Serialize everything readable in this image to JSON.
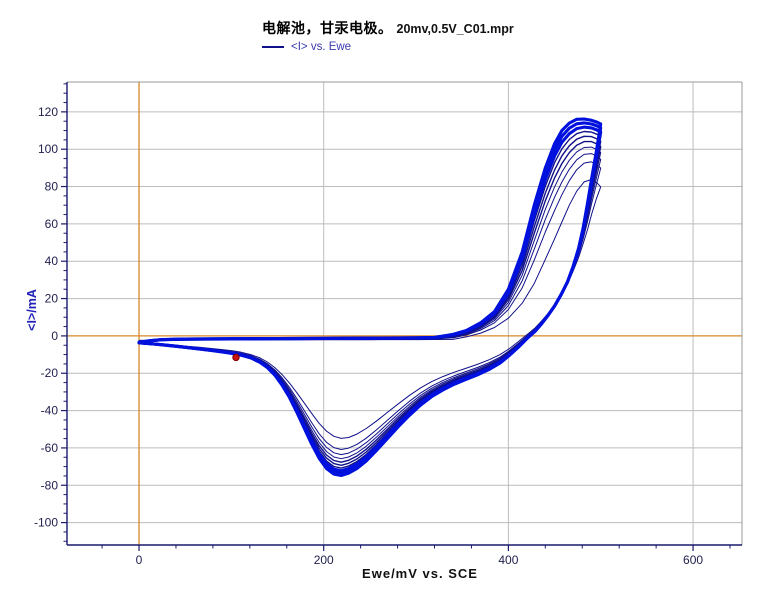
{
  "chart_data": {
    "type": "line",
    "title_cn": "电解池，甘汞电极。",
    "title_file": "20mv,0.5V_C01.mpr",
    "legend": "<I> vs. Ewe",
    "xlabel": "Ewe/mV vs. SCE",
    "ylabel": "<I>/mA",
    "xlim": [
      -78,
      653
    ],
    "ylim": [
      -112,
      136
    ],
    "x_ticks": [
      0,
      200,
      400,
      600
    ],
    "y_ticks": [
      -100,
      -80,
      -60,
      -40,
      -20,
      0,
      20,
      40,
      60,
      80,
      100,
      120
    ],
    "x_minor_step": 40,
    "y_minor_step": 5,
    "grid": true,
    "legend_position": "top-left-under-title",
    "colors": {
      "trace_bold": "#0010dd",
      "trace_thin": "#10108a",
      "zero_lines": "#d8872a",
      "grid": "#bcbcbc",
      "frame_gray": "#9a9a9a",
      "axis_navy": "#1a1a6e",
      "tick_label": "#22224f",
      "marker": "#cc1111"
    },
    "marker_point": {
      "x": 105,
      "y": -11.5
    },
    "n_cycles": 10,
    "series": {
      "name": "<I> vs. Ewe",
      "note": "cyclic voltammogram, 10 cycles between 0 and 500 mV; first (innermost) and last (outermost) cycles given, intermediate cycles interpolated",
      "forward_x": [
        0,
        12,
        25,
        50,
        100,
        150,
        200,
        250,
        300,
        320,
        340,
        355,
        370,
        385,
        400,
        415,
        428,
        440,
        450,
        458,
        466,
        474,
        482,
        490,
        496,
        500
      ],
      "outer_forward_y": [
        -3.6,
        -2.6,
        -2.0,
        -1.7,
        -1.5,
        -1.4,
        -1.3,
        -1.2,
        -1.0,
        -0.8,
        0.8,
        3,
        7,
        13,
        25,
        45,
        70,
        90,
        103,
        110,
        114,
        116,
        116.2,
        115.5,
        114.5,
        113.5
      ],
      "inner_forward_y": [
        -2.4,
        -2.35,
        -2.3,
        -2.25,
        -2.2,
        -2.15,
        -2.1,
        -2.05,
        -2.0,
        -1.95,
        -1.85,
        -0.5,
        1.5,
        4.5,
        9.5,
        17.5,
        28,
        41,
        52,
        61,
        70,
        77.5,
        82.5,
        83.8,
        82,
        79.8
      ],
      "reverse_x": [
        500,
        495,
        490,
        486,
        481,
        476,
        470,
        464,
        457,
        450,
        443,
        436,
        429,
        421,
        411,
        401,
        391,
        379,
        366,
        353,
        341,
        329,
        317,
        305,
        293,
        281,
        269,
        257,
        246,
        236,
        227,
        219,
        211,
        203,
        195,
        187,
        179,
        171,
        163,
        155,
        147,
        139,
        131,
        121,
        111,
        101,
        89,
        77,
        65,
        53,
        41,
        29,
        17,
        8,
        0
      ],
      "outer_reverse_y": [
        113.5,
        98,
        84,
        72,
        58,
        47,
        37,
        29,
        22,
        16,
        11,
        6.5,
        2.5,
        -1,
        -6,
        -10.5,
        -14.5,
        -18,
        -21,
        -23.5,
        -26,
        -29,
        -32.5,
        -37,
        -42.5,
        -48.5,
        -55,
        -61.5,
        -67,
        -71,
        -73.5,
        -74.8,
        -74,
        -71,
        -65.5,
        -58,
        -49.5,
        -41,
        -33,
        -26.5,
        -21,
        -17,
        -14.2,
        -11.8,
        -10.4,
        -9.4,
        -8.5,
        -7.7,
        -7,
        -6.3,
        -5.6,
        -5,
        -4.4,
        -4,
        -3.7
      ],
      "inner_reverse_y": [
        79.8,
        73,
        65,
        57.5,
        49.5,
        42,
        34.5,
        28,
        22,
        16.5,
        12,
        8,
        4.3,
        1,
        -3,
        -6.8,
        -10,
        -12.8,
        -15.3,
        -17.5,
        -19.5,
        -21.8,
        -24.5,
        -27.8,
        -31.8,
        -36.3,
        -41,
        -45.7,
        -49.6,
        -52.6,
        -54.4,
        -54.9,
        -53.8,
        -51,
        -46.8,
        -41.5,
        -36,
        -30.5,
        -25.3,
        -20.8,
        -17,
        -14,
        -11.8,
        -10,
        -8.8,
        -8,
        -7.3,
        -6.7,
        -6.1,
        -5.6,
        -5.1,
        -4.6,
        -4.1,
        -3.7,
        -3.4
      ],
      "anodic_peak_mA": 115.5,
      "anodic_peak_mV": 485,
      "cathodic_peak_mA": -74.8,
      "cathodic_peak_mV": 220,
      "first_cycle_anodic_peak_mA": 83.8,
      "first_cycle_cathodic_peak_mA": -55
    }
  }
}
